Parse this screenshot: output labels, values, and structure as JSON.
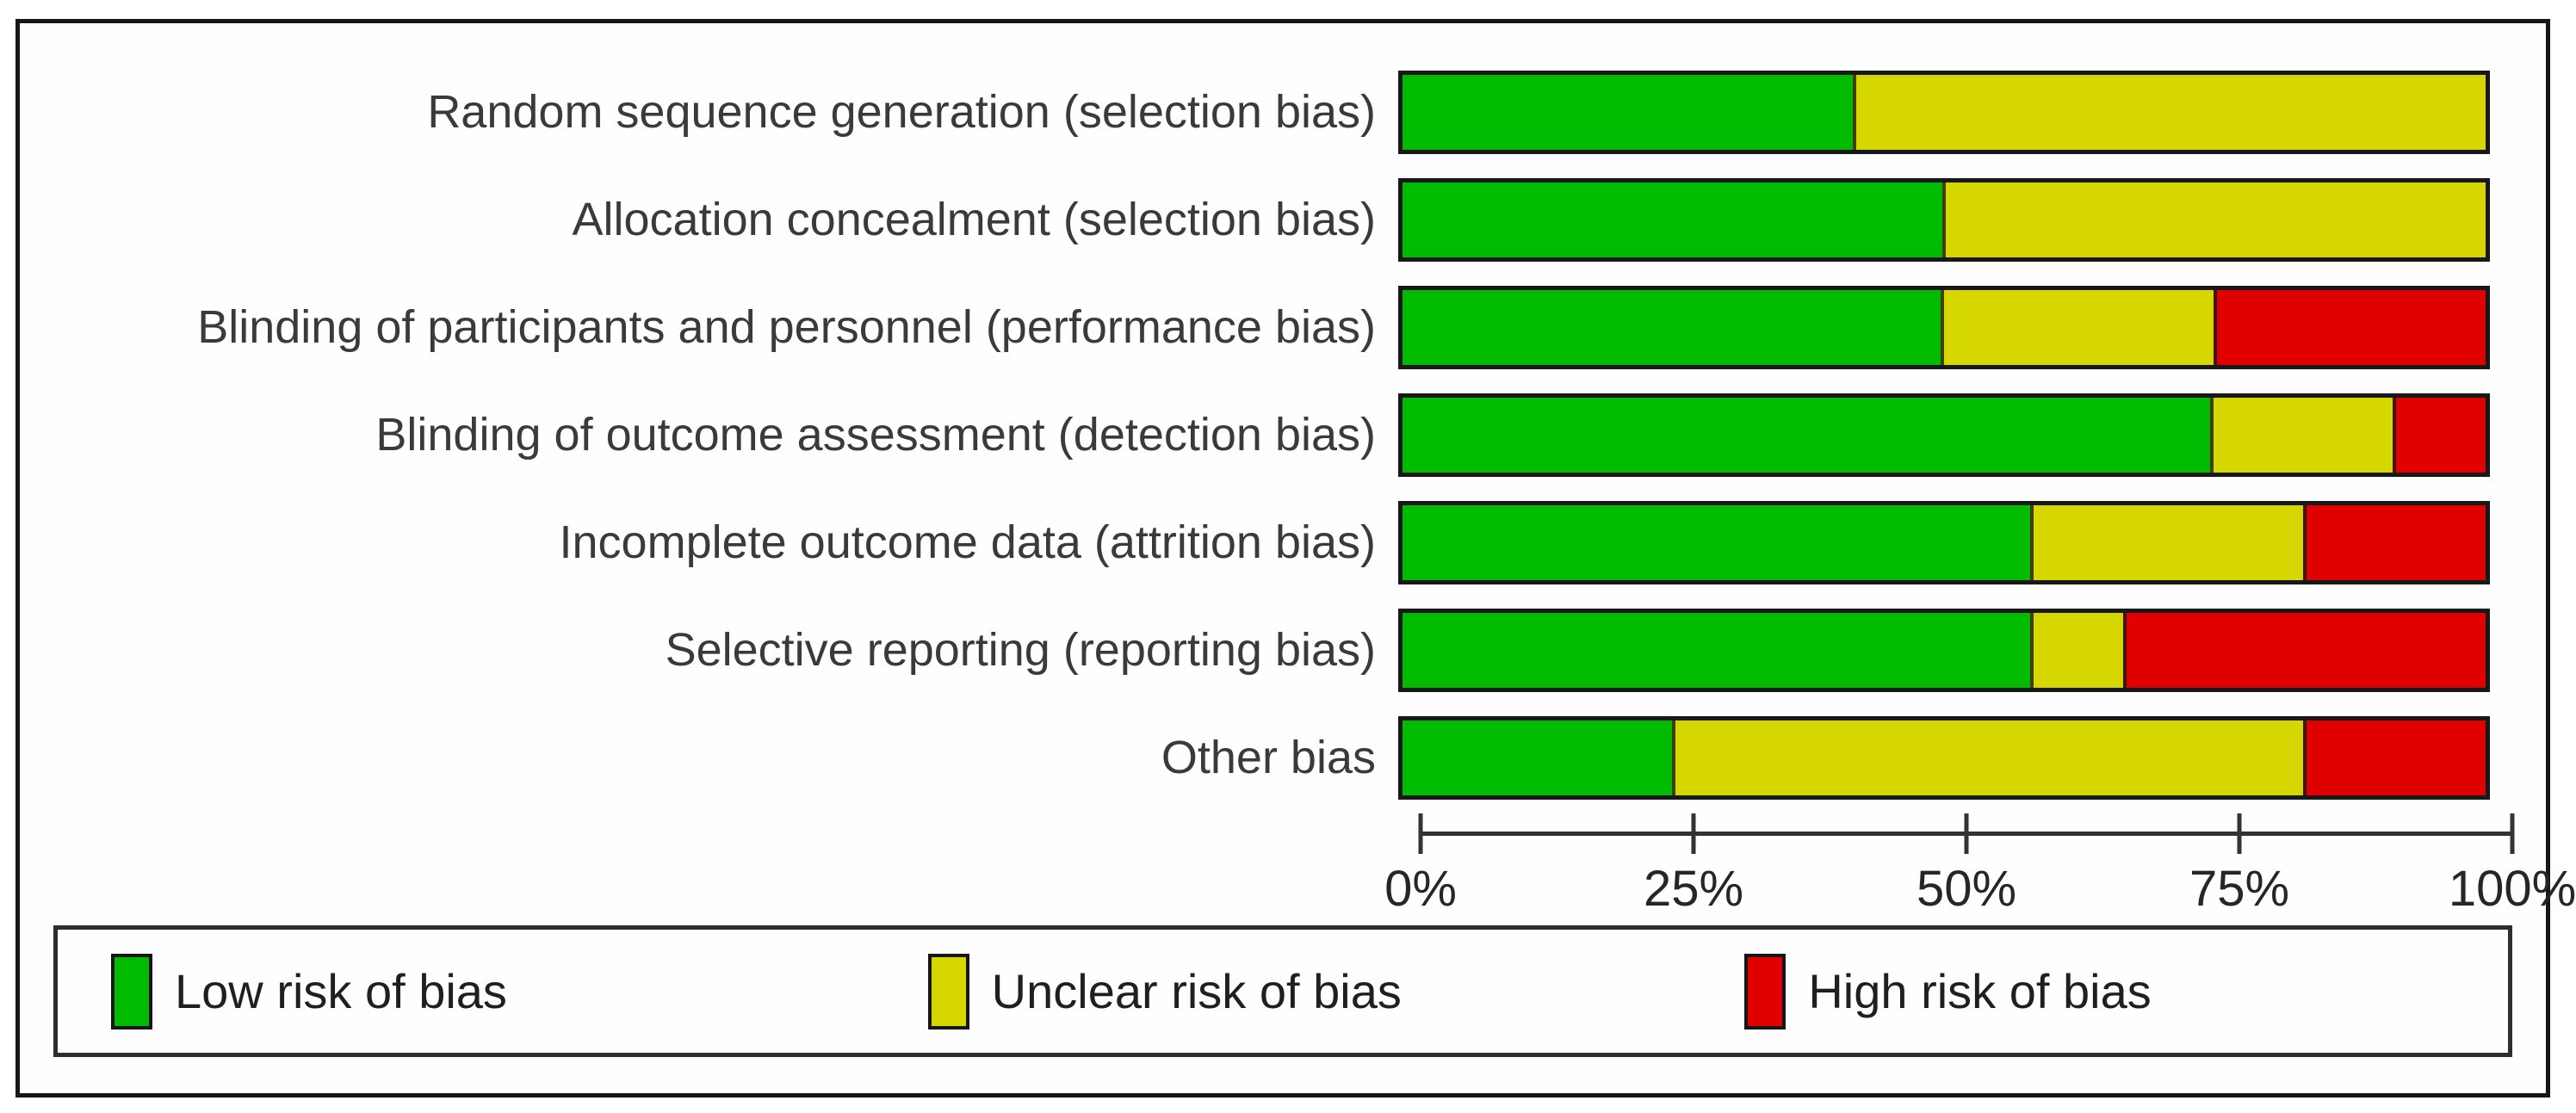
{
  "chart_data": {
    "type": "bar",
    "variant": "horizontal-stacked-percentage",
    "title": "",
    "xlabel": "",
    "ylabel": "",
    "xlim": [
      0,
      100
    ],
    "grid": false,
    "legend_position": "bottom",
    "categories": [
      "Random sequence generation (selection bias)",
      "Allocation concealment (selection bias)",
      "Blinding of participants and personnel (performance bias)",
      "Blinding of outcome assessment (detection bias)",
      "Incomplete outcome data (attrition bias)",
      "Selective reporting (reporting bias)",
      "Other bias"
    ],
    "series": [
      {
        "name": "Low risk of bias",
        "key": "low",
        "color": "#00bb00",
        "values": [
          41.67,
          50,
          50,
          75,
          58.33,
          58.33,
          25
        ]
      },
      {
        "name": "Unclear risk of bias",
        "key": "unclear",
        "color": "#d7d700",
        "values": [
          58.33,
          50,
          25,
          16.67,
          25,
          8.33,
          58.33
        ]
      },
      {
        "name": "High risk of bias",
        "key": "high",
        "color": "#e00000",
        "values": [
          0,
          0,
          25,
          8.33,
          16.67,
          33.33,
          16.67
        ]
      }
    ],
    "x_ticks": [
      {
        "label": "0%",
        "value": 0
      },
      {
        "label": "25%",
        "value": 25
      },
      {
        "label": "50%",
        "value": 50
      },
      {
        "label": "75%",
        "value": 75
      },
      {
        "label": "100%",
        "value": 100
      }
    ]
  },
  "legend": {
    "items": [
      {
        "label": "Low risk of bias",
        "key": "low",
        "color": "#00bb00"
      },
      {
        "label": "Unclear risk of bias",
        "key": "unclear",
        "color": "#d7d700"
      },
      {
        "label": "High risk of bias",
        "key": "high",
        "color": "#e00000"
      }
    ]
  },
  "colors": {
    "low": "#00bb00",
    "unclear": "#d7d700",
    "high": "#e00000",
    "bar_border": "#181818",
    "axis": "#333333",
    "label_text": "#3a3a3a",
    "frame_border": "#161616"
  }
}
